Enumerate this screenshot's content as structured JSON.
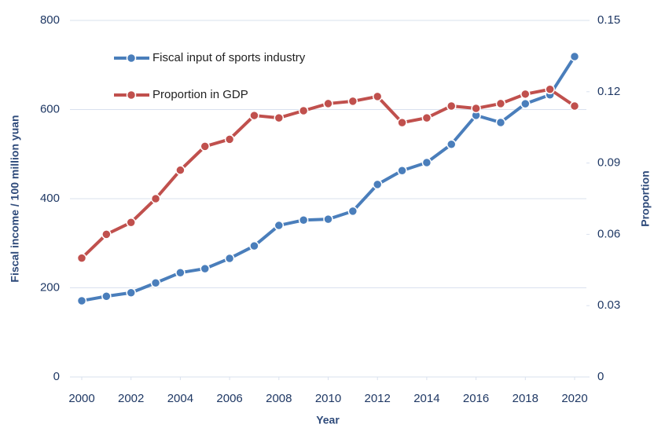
{
  "chart_data": {
    "type": "line",
    "x_label": "Year",
    "y_label": "Fiscal income / 100 million yuan",
    "y2_label": "Proportion",
    "x": [
      2000,
      2001,
      2002,
      2003,
      2004,
      2005,
      2006,
      2007,
      2008,
      2009,
      2010,
      2011,
      2012,
      2013,
      2014,
      2015,
      2016,
      2017,
      2018,
      2019,
      2020
    ],
    "series": [
      {
        "name": "Fiscal input of sports industry",
        "color": "#4a7ebb",
        "values": [
          171,
          181,
          189,
          211,
          234,
          243,
          266,
          294,
          340,
          352,
          354,
          372,
          432,
          463,
          481,
          522,
          587,
          571,
          613,
          633,
          719
        ]
      },
      {
        "name": "Proportion in GDP",
        "color": "#c0504d",
        "axis": "y2",
        "values": [
          0.05,
          0.06,
          0.065,
          0.075,
          0.087,
          0.097,
          0.1,
          0.11,
          0.109,
          0.112,
          0.115,
          0.116,
          0.118,
          0.107,
          0.109,
          0.114,
          0.113,
          0.115,
          0.119,
          0.121,
          0.114
        ]
      }
    ],
    "xlim": [
      2000,
      2020
    ],
    "xticks": [
      2000,
      2002,
      2004,
      2006,
      2008,
      2010,
      2012,
      2014,
      2016,
      2018,
      2020
    ],
    "ylim": [
      0,
      800
    ],
    "yticks": [
      0,
      200,
      400,
      600,
      800
    ],
    "y2lim": [
      0,
      0.15
    ],
    "y2ticks": [
      0,
      0.03,
      0.06,
      0.09,
      0.12,
      0.15
    ],
    "grid": true,
    "legend": "upper left"
  }
}
